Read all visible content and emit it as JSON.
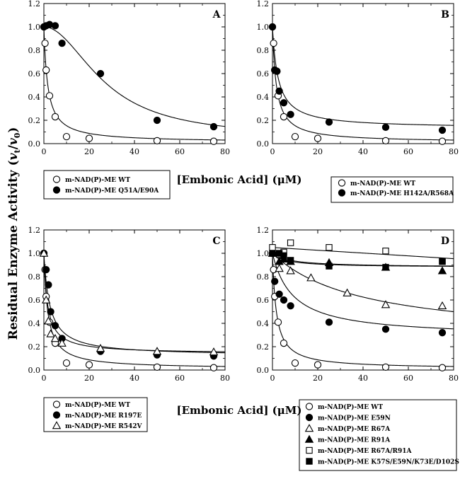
{
  "figure": {
    "y_axis_title": "Residual Enzyme Activity (",
    "y_axis_title_vt": "v",
    "y_axis_title_vt_sub": "t",
    "y_axis_title_sep": "/",
    "y_axis_title_v0": "v",
    "y_axis_title_v0_sub": "0",
    "y_axis_title_end": ")",
    "x_axis_title_top": "[Embonic Acid] (μM)",
    "x_axis_title_bottom": "[Embonic Acid] (μM)"
  },
  "chart_data": [
    {
      "panel": "A",
      "type": "scatter",
      "xlim": [
        0,
        80
      ],
      "ylim": [
        0,
        1.2
      ],
      "xticks": [
        "0",
        "20",
        "40",
        "60",
        "80"
      ],
      "yticks": [
        "0.0",
        "0.2",
        "0.4",
        "0.6",
        "0.8",
        "1.0",
        "1.2"
      ],
      "series": [
        {
          "name": "m-NAD(P)-ME WT",
          "marker": "circle-open",
          "points": [
            [
              0,
              1.0
            ],
            [
              0.5,
              0.86
            ],
            [
              1,
              0.63
            ],
            [
              2.5,
              0.41
            ],
            [
              5,
              0.23
            ],
            [
              10,
              0.06
            ],
            [
              20,
              0.045
            ],
            [
              50,
              0.025
            ],
            [
              75,
              0.02
            ]
          ],
          "curve": {
            "model": "hyperbolic",
            "ic50": 1.7,
            "residual": 0.01
          }
        },
        {
          "name": "m-NAD(P)-ME Q51A/E90A",
          "marker": "circle-filled",
          "points": [
            [
              0,
              1.0
            ],
            [
              1,
              1.01
            ],
            [
              2.5,
              1.02
            ],
            [
              5,
              1.01
            ],
            [
              8,
              0.86
            ],
            [
              25,
              0.6
            ],
            [
              50,
              0.2
            ],
            [
              75,
              0.145
            ]
          ],
          "curve": {
            "model": "hill",
            "ic50": 27,
            "hill": 2.0,
            "residual": 0.05
          }
        }
      ]
    },
    {
      "panel": "B",
      "type": "scatter",
      "xlim": [
        0,
        80
      ],
      "ylim": [
        0,
        1.2
      ],
      "xticks": [
        "0",
        "20",
        "40",
        "60",
        "80"
      ],
      "yticks": [
        "0.0",
        "0.2",
        "0.4",
        "0.6",
        "0.8",
        "1.0",
        "1.2"
      ],
      "series": [
        {
          "name": "m-NAD(P)-ME WT",
          "marker": "circle-open",
          "points": [
            [
              0,
              1.0
            ],
            [
              0.5,
              0.86
            ],
            [
              1,
              0.63
            ],
            [
              2.5,
              0.41
            ],
            [
              5,
              0.23
            ],
            [
              10,
              0.06
            ],
            [
              20,
              0.045
            ],
            [
              50,
              0.025
            ],
            [
              75,
              0.02
            ]
          ],
          "curve": {
            "model": "hyperbolic",
            "ic50": 1.7,
            "residual": 0.01
          }
        },
        {
          "name": "m-NAD(P)-ME H142A/R568A",
          "marker": "circle-filled",
          "points": [
            [
              0,
              1.0
            ],
            [
              1,
              0.63
            ],
            [
              2,
              0.62
            ],
            [
              3,
              0.45
            ],
            [
              5,
              0.35
            ],
            [
              8,
              0.25
            ],
            [
              25,
              0.185
            ],
            [
              50,
              0.14
            ],
            [
              75,
              0.115
            ]
          ],
          "curve": {
            "model": "hyperbolic",
            "ic50": 2.5,
            "residual": 0.13
          }
        }
      ]
    },
    {
      "panel": "C",
      "type": "scatter",
      "xlim": [
        0,
        80
      ],
      "ylim": [
        0,
        1.2
      ],
      "xticks": [
        "0",
        "20",
        "40",
        "60",
        "80"
      ],
      "yticks": [
        "0.0",
        "0.2",
        "0.4",
        "0.6",
        "0.8",
        "1.0",
        "1.2"
      ],
      "series": [
        {
          "name": "m-NAD(P)-ME WT",
          "marker": "circle-open",
          "points": [
            [
              0,
              1.0
            ],
            [
              0.5,
              0.86
            ],
            [
              1,
              0.63
            ],
            [
              2.5,
              0.41
            ],
            [
              5,
              0.23
            ],
            [
              10,
              0.06
            ],
            [
              20,
              0.045
            ],
            [
              50,
              0.025
            ],
            [
              75,
              0.02
            ]
          ],
          "curve": {
            "model": "hyperbolic",
            "ic50": 1.7,
            "residual": 0.01
          }
        },
        {
          "name": "m-NAD(P)-ME R197E",
          "marker": "circle-filled",
          "points": [
            [
              0,
              1.0
            ],
            [
              1,
              0.86
            ],
            [
              2,
              0.73
            ],
            [
              3,
              0.5
            ],
            [
              5,
              0.38
            ],
            [
              8,
              0.27
            ],
            [
              25,
              0.16
            ],
            [
              50,
              0.13
            ],
            [
              75,
              0.12
            ]
          ],
          "curve": {
            "model": "hyperbolic",
            "ic50": 2.6,
            "residual": 0.12
          }
        },
        {
          "name": "m-NAD(P)-ME R542V",
          "marker": "triangle-open",
          "points": [
            [
              0,
              1.0
            ],
            [
              1,
              0.6
            ],
            [
              2,
              0.42
            ],
            [
              3,
              0.31
            ],
            [
              5,
              0.27
            ],
            [
              8,
              0.23
            ],
            [
              25,
              0.185
            ],
            [
              50,
              0.16
            ],
            [
              75,
              0.155
            ]
          ],
          "curve": {
            "model": "hyperbolic",
            "ic50": 1.6,
            "residual": 0.14
          }
        }
      ]
    },
    {
      "panel": "D",
      "type": "scatter",
      "xlim": [
        0,
        80
      ],
      "ylim": [
        0,
        1.2
      ],
      "xticks": [
        "0",
        "20",
        "40",
        "60",
        "80"
      ],
      "yticks": [
        "0.0",
        "0.2",
        "0.4",
        "0.6",
        "0.8",
        "1.0",
        "1.2"
      ],
      "series": [
        {
          "name": "m-NAD(P)-ME WT",
          "marker": "circle-open",
          "points": [
            [
              0,
              1.0
            ],
            [
              0.5,
              0.86
            ],
            [
              1,
              0.63
            ],
            [
              2.5,
              0.41
            ],
            [
              5,
              0.23
            ],
            [
              10,
              0.06
            ],
            [
              20,
              0.045
            ],
            [
              50,
              0.025
            ],
            [
              75,
              0.02
            ]
          ],
          "curve": {
            "model": "hyperbolic",
            "ic50": 1.7,
            "residual": 0.01
          }
        },
        {
          "name": "m-NAD(P)-ME E59N",
          "marker": "circle-filled",
          "points": [
            [
              0,
              1.0
            ],
            [
              1,
              0.76
            ],
            [
              3,
              0.65
            ],
            [
              5,
              0.6
            ],
            [
              8,
              0.55
            ],
            [
              25,
              0.41
            ],
            [
              50,
              0.35
            ],
            [
              75,
              0.32
            ]
          ],
          "curve": {
            "model": "hyperbolic",
            "ic50": 9,
            "residual": 0.28
          }
        },
        {
          "name": "m-NAD(P)-ME R67A",
          "marker": "triangle-open",
          "points": [
            [
              0,
              1.0
            ],
            [
              3,
              0.87
            ],
            [
              8,
              0.85
            ],
            [
              17,
              0.79
            ],
            [
              33,
              0.66
            ],
            [
              50,
              0.56
            ],
            [
              75,
              0.55
            ]
          ],
          "curve": {
            "model": "hyperbolic",
            "ic50": 40,
            "residual": 0.25
          }
        },
        {
          "name": "m-NAD(P)-ME R91A",
          "marker": "triangle-filled",
          "points": [
            [
              0,
              1.0
            ],
            [
              3,
              0.93
            ],
            [
              5,
              0.95
            ],
            [
              8,
              0.93
            ],
            [
              25,
              0.92
            ],
            [
              50,
              0.88
            ],
            [
              75,
              0.85
            ]
          ],
          "curve": {
            "model": "hyperbolic",
            "ic50": 6,
            "residual": 0.88
          }
        },
        {
          "name": "m-NAD(P)-ME R67A/R91A",
          "marker": "square-open",
          "points": [
            [
              0,
              1.05
            ],
            [
              3,
              0.99
            ],
            [
              5,
              1.01
            ],
            [
              8,
              1.09
            ],
            [
              25,
              1.05
            ],
            [
              50,
              1.02
            ],
            [
              75,
              0.93
            ]
          ],
          "curve": {
            "model": "linear",
            "y0": 1.05,
            "slope": -0.0012
          }
        },
        {
          "name": "m-NAD(P)-ME K57S/E59N/K73E/D102S",
          "marker": "square-filled",
          "points": [
            [
              0,
              1.0
            ],
            [
              3,
              1.0
            ],
            [
              5,
              0.98
            ],
            [
              8,
              0.94
            ],
            [
              25,
              0.89
            ],
            [
              50,
              0.88
            ],
            [
              75,
              0.93
            ]
          ],
          "curve": {
            "model": "hyperbolic",
            "ic50": 8,
            "residual": 0.88
          }
        }
      ]
    }
  ]
}
